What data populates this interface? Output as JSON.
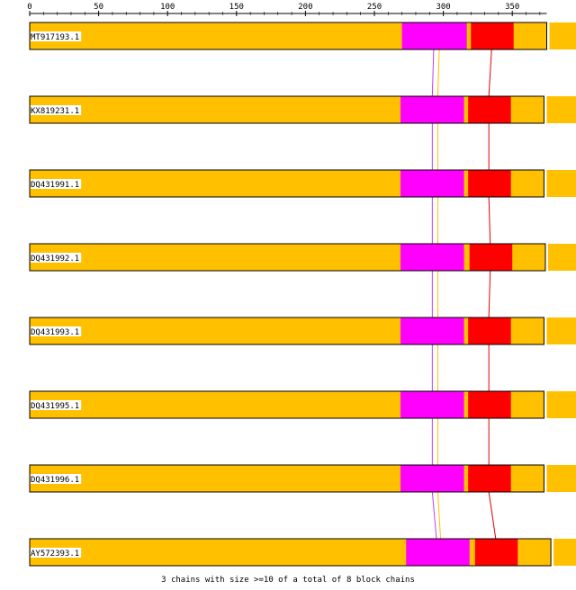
{
  "axis": {
    "ticks": [
      0,
      50,
      100,
      150,
      200,
      250,
      300,
      350
    ],
    "range": [
      0,
      375
    ]
  },
  "colors": {
    "background_block": "#ffc000",
    "block_magenta": "#ff00ff",
    "block_red": "#ff0000",
    "link_gold": "#ffc000",
    "link_violet": "#c040ff",
    "link_red": "#e00000",
    "outline": "#000000"
  },
  "sequences": [
    {
      "label": "MT917193.1",
      "length": 375,
      "blocks": [
        {
          "start": 270,
          "end": 317,
          "color": "magenta"
        },
        {
          "start": 320,
          "end": 351,
          "color": "red"
        }
      ]
    },
    {
      "label": "KX819231.1",
      "length": 373,
      "blocks": [
        {
          "start": 269,
          "end": 315,
          "color": "magenta"
        },
        {
          "start": 318,
          "end": 349,
          "color": "red"
        }
      ]
    },
    {
      "label": "DQ431991.1",
      "length": 373,
      "blocks": [
        {
          "start": 269,
          "end": 315,
          "color": "magenta"
        },
        {
          "start": 318,
          "end": 349,
          "color": "red"
        }
      ]
    },
    {
      "label": "DQ431992.1",
      "length": 374,
      "blocks": [
        {
          "start": 269,
          "end": 315,
          "color": "magenta"
        },
        {
          "start": 319,
          "end": 350,
          "color": "red"
        }
      ]
    },
    {
      "label": "DQ431993.1",
      "length": 373,
      "blocks": [
        {
          "start": 269,
          "end": 315,
          "color": "magenta"
        },
        {
          "start": 318,
          "end": 349,
          "color": "red"
        }
      ]
    },
    {
      "label": "DQ431995.1",
      "length": 373,
      "blocks": [
        {
          "start": 269,
          "end": 315,
          "color": "magenta"
        },
        {
          "start": 318,
          "end": 349,
          "color": "red"
        }
      ]
    },
    {
      "label": "DQ431996.1",
      "length": 373,
      "blocks": [
        {
          "start": 269,
          "end": 315,
          "color": "magenta"
        },
        {
          "start": 318,
          "end": 349,
          "color": "red"
        }
      ]
    },
    {
      "label": "AY572393.1",
      "length": 378,
      "blocks": [
        {
          "start": 273,
          "end": 319,
          "color": "magenta"
        },
        {
          "start": 323,
          "end": 354,
          "color": "red"
        }
      ]
    }
  ],
  "links": [
    {
      "color": "gold",
      "positions": [
        297,
        296,
        296,
        296,
        296,
        296,
        296,
        298
      ]
    },
    {
      "color": "violet",
      "positions": [
        293,
        292,
        292,
        292,
        292,
        292,
        292,
        295
      ]
    },
    {
      "color": "red",
      "positions": [
        335,
        333,
        333,
        334,
        333,
        333,
        333,
        338
      ]
    }
  ],
  "caption": "3 chains with size >=10 of a total of 8 block chains"
}
